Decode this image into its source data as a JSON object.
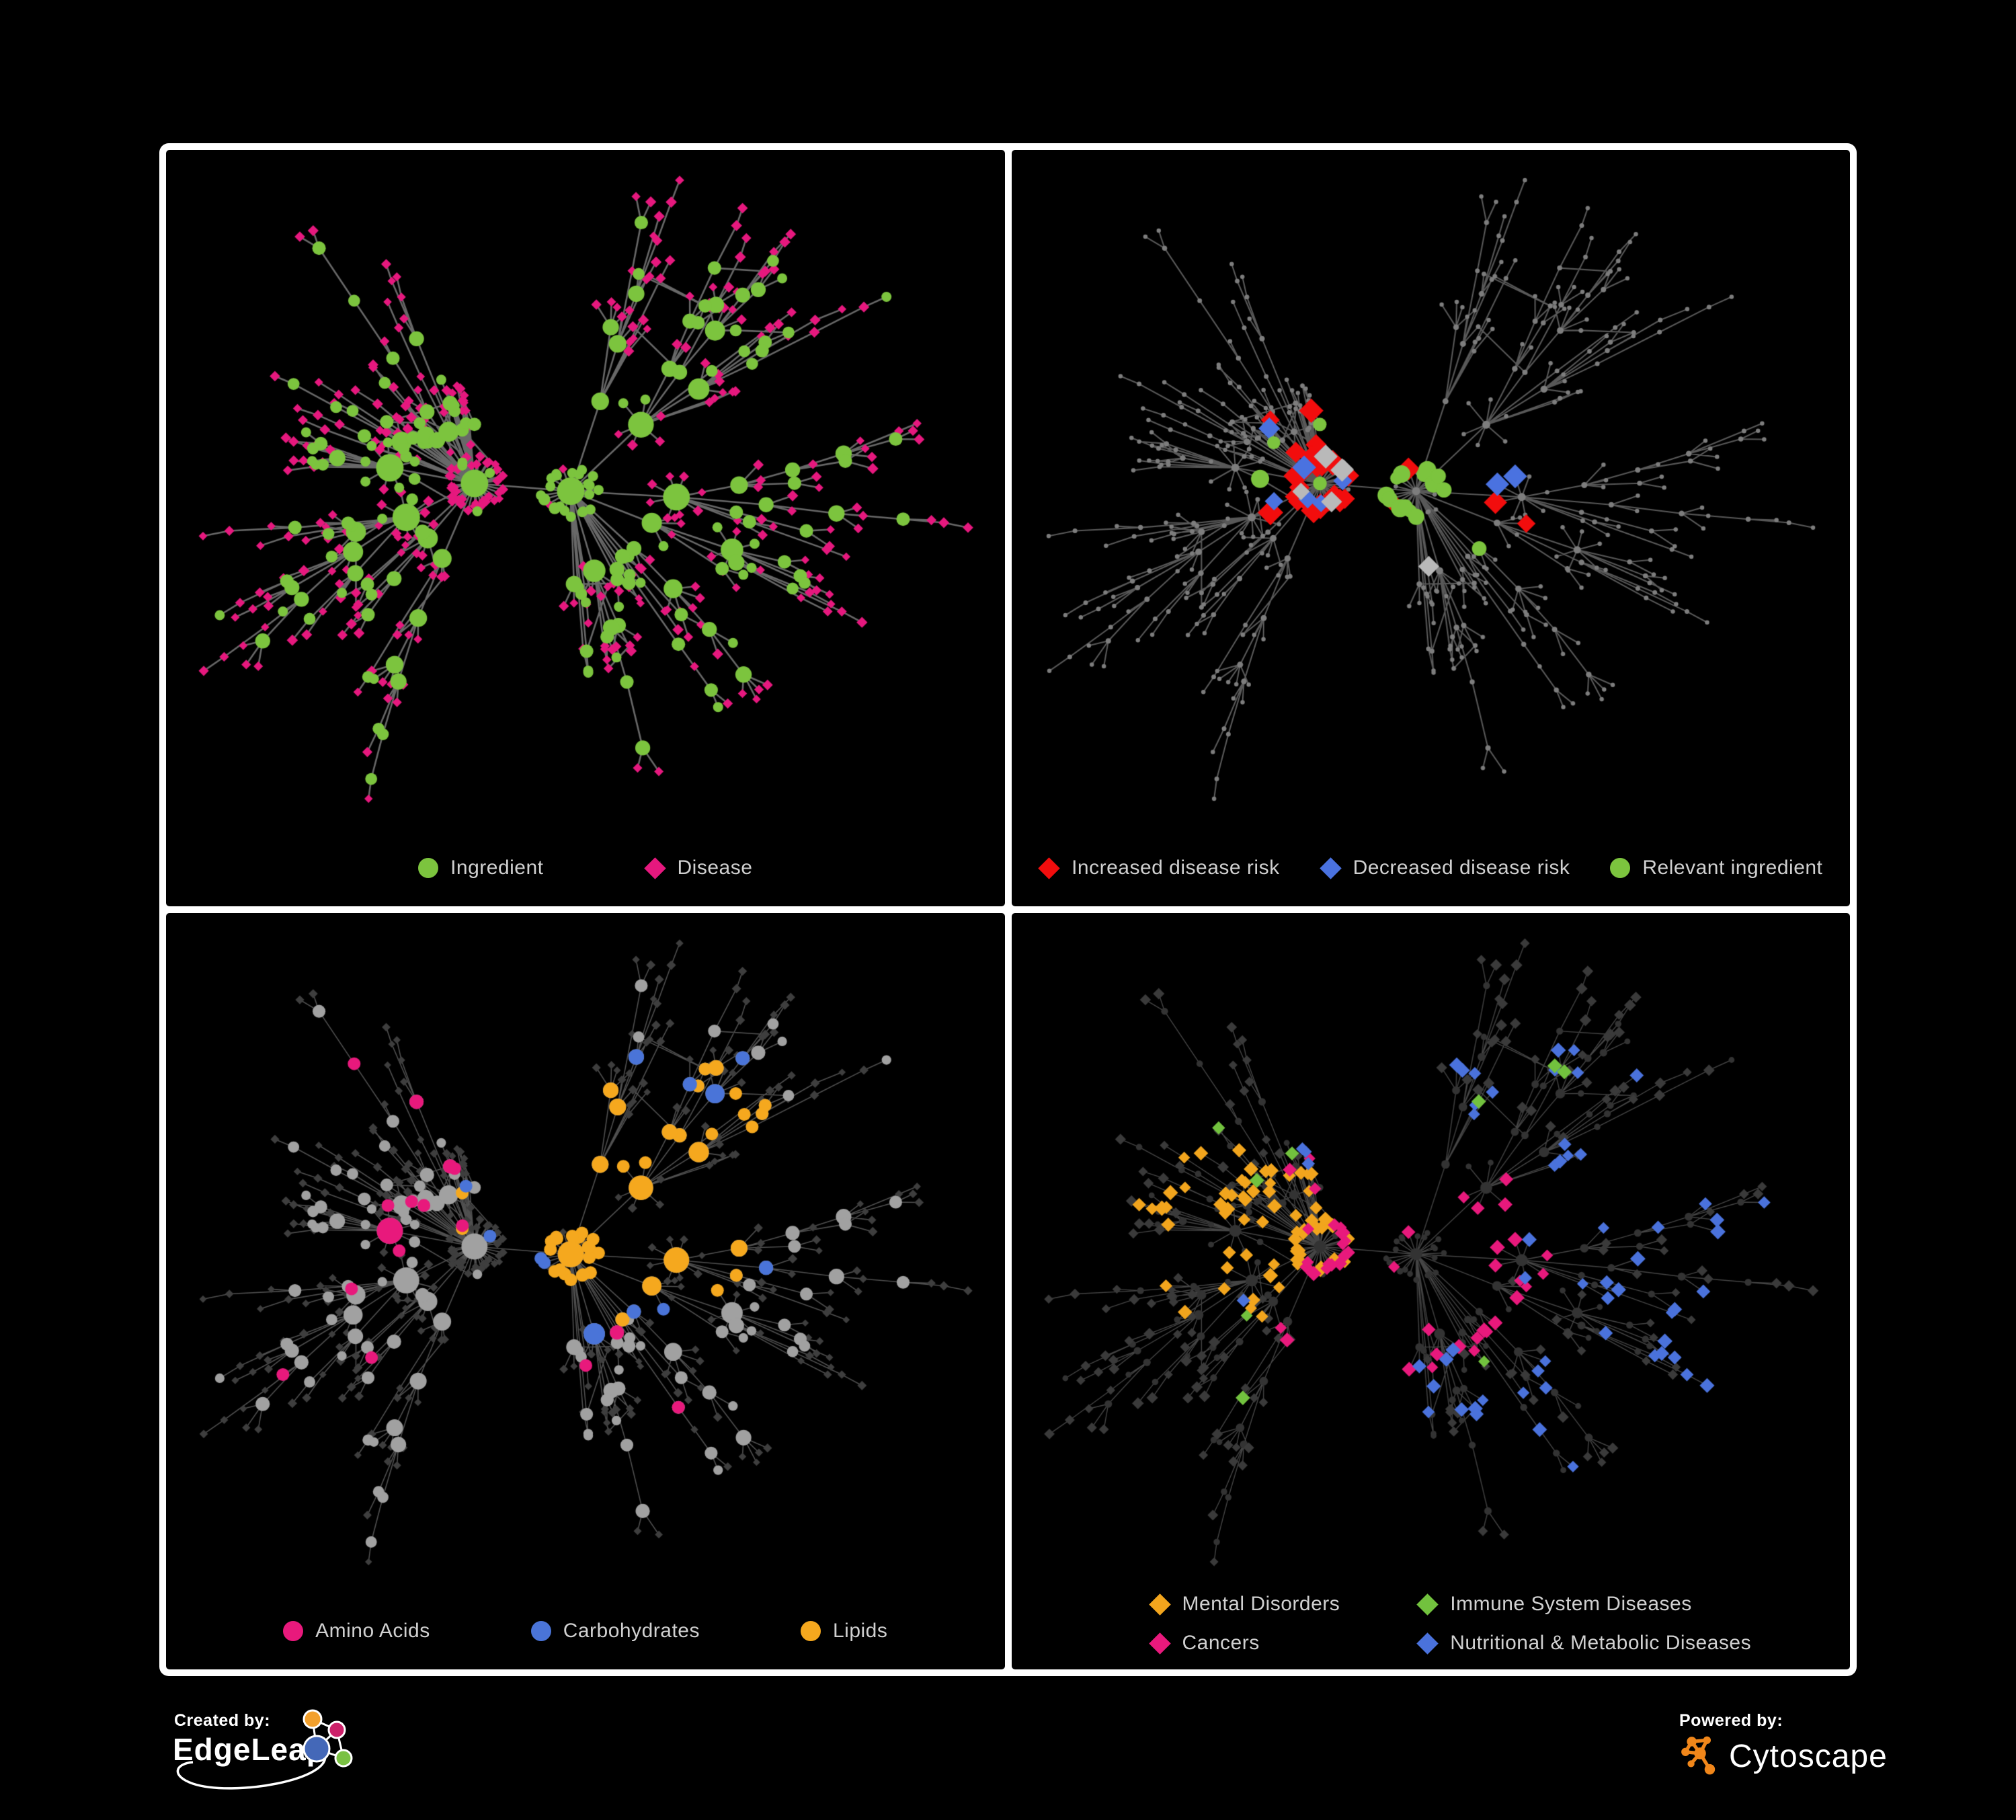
{
  "figure": {
    "background": "#000000",
    "frame_color": "#ffffff"
  },
  "network": {
    "seed": 11,
    "node_count": 560,
    "preferential": 0.74,
    "extra_edges": 24
  },
  "panels": [
    {
      "name": "ingredient-disease-network",
      "mode": "kind",
      "legend": [
        {
          "label": "Ingredient",
          "shape": "circle",
          "color": "#7cc43e"
        },
        {
          "label": "Disease",
          "shape": "diamond",
          "color": "#e6187e"
        }
      ],
      "style": {
        "edge_color": "#7a7a7a",
        "edge_alpha": 0.85,
        "edge_width": 2.6,
        "ing_color": "#7cc43e",
        "dis_color": "#e6187e"
      }
    },
    {
      "name": "disease-risk-network",
      "mode": "dim",
      "legend": [
        {
          "label": "Increased disease risk",
          "shape": "diamond",
          "color": "#f20d0d"
        },
        {
          "label": "Decreased disease risk",
          "shape": "diamond",
          "color": "#4a72e0"
        },
        {
          "label": "Relevant ingredient",
          "shape": "circle",
          "color": "#7cc43e"
        }
      ],
      "style": {
        "edge_color": "#6e6e6e",
        "edge_alpha": 0.8,
        "edge_width": 2.1,
        "base_color": "#7d7d7d"
      },
      "highlights": [
        {
          "name": "increased-risk",
          "color": "#f20d0d",
          "shape": "diamond",
          "size": 16,
          "count": 28,
          "kind": "dis",
          "anchor": "com",
          "sigma": 0.2,
          "floor": 0.08
        },
        {
          "name": "decreased-risk",
          "color": "#4a72e0",
          "shape": "diamond",
          "size": 15,
          "count": 9,
          "kind": "dis",
          "anchor": "com",
          "sigma": 0.3,
          "floor": 0.2
        },
        {
          "name": "unchanged-risk",
          "color": "#b9b9b9",
          "shape": "diamond",
          "size": 15,
          "count": 6,
          "kind": "dis",
          "anchor": "com",
          "sigma": 0.18,
          "floor": 0.05
        },
        {
          "name": "relevant-ingredient",
          "color": "#7cc43e",
          "shape": "circle",
          "size": 15,
          "count": 19,
          "kind": "ing",
          "anchor": "com",
          "sigma": 0.17,
          "floor": 0.04
        }
      ]
    },
    {
      "name": "nutrient-class-network",
      "mode": "ing-focus",
      "legend": [
        {
          "label": "Amino Acids",
          "shape": "circle",
          "color": "#e8197c"
        },
        {
          "label": "Carbohydrates",
          "shape": "circle",
          "color": "#4a74d8"
        },
        {
          "label": "Lipids",
          "shape": "circle",
          "color": "#f5a81e"
        }
      ],
      "style": {
        "edge_color": "#a0a0a0",
        "edge_alpha": 0.5,
        "edge_width": 1.6,
        "ing_color": "#a1a1a1",
        "dis_color": "#3e3e3e"
      },
      "highlights": [
        {
          "name": "lipids",
          "color": "#f5a81e",
          "shape": "circle",
          "size": 0,
          "count": 46,
          "kind": "ing",
          "anchor": "hub-top-mid",
          "sigma": 0.13,
          "floor": 0.04
        },
        {
          "name": "carbohydrates",
          "color": "#4a74d8",
          "shape": "circle",
          "size": 0,
          "count": 12,
          "kind": "ing",
          "anchor": "hub-top-mid",
          "sigma": 0.08,
          "floor": 0.03
        },
        {
          "name": "amino-acids",
          "color": "#e8197c",
          "shape": "circle",
          "size": 0,
          "count": 16,
          "kind": "ing",
          "anchor": "com",
          "sigma": 0.55,
          "floor": 0.4
        }
      ]
    },
    {
      "name": "disease-class-network",
      "mode": "dis-focus",
      "legend": [
        {
          "label": "Mental Disorders",
          "shape": "diamond",
          "color": "#f2a51d"
        },
        {
          "label": "Immune System Diseases",
          "shape": "diamond",
          "color": "#72c23e"
        },
        {
          "label": "Cancers",
          "shape": "diamond",
          "color": "#e8197c"
        },
        {
          "label": "Nutritional & Metabolic Diseases",
          "shape": "diamond",
          "color": "#4a72dc"
        }
      ],
      "style": {
        "edge_color": "#9a9a9a",
        "edge_alpha": 0.45,
        "edge_width": 1.4,
        "ing_color": "#333333",
        "dis_color": "#3a3a3a"
      },
      "highlights": [
        {
          "name": "mental-disorders",
          "color": "#f2a51d",
          "shape": "diamond",
          "size": 10,
          "count": 72,
          "kind": "dis",
          "anchor": "hub-left",
          "sigma": 0.11,
          "floor": 0.015
        },
        {
          "name": "cancers",
          "color": "#e8197c",
          "shape": "diamond",
          "size": 10,
          "count": 46,
          "kind": "dis",
          "anchor": "hub-center",
          "sigma": 0.13,
          "floor": 0.02
        },
        {
          "name": "nutritional-metabolic",
          "color": "#4a72dc",
          "shape": "diamond",
          "size": 10,
          "count": 58,
          "kind": "dis",
          "anchor": "hub-right",
          "sigma": 0.35,
          "floor": 0.06
        },
        {
          "name": "immune-system",
          "color": "#72c23e",
          "shape": "diamond",
          "size": 10,
          "count": 9,
          "kind": "dis",
          "anchor": "com",
          "sigma": 0.6,
          "floor": 0.5
        }
      ]
    }
  ],
  "footer": {
    "created_by": "Created by:",
    "creator": "EdgeLeap",
    "powered_by": "Powered by:",
    "engine": "Cytoscape",
    "edgeleap_colors": {
      "orange": "#F3A02C",
      "magenta": "#CC2069",
      "blue": "#4468B8",
      "green": "#7AC143"
    },
    "cytoscape_color": "#F0861A"
  }
}
